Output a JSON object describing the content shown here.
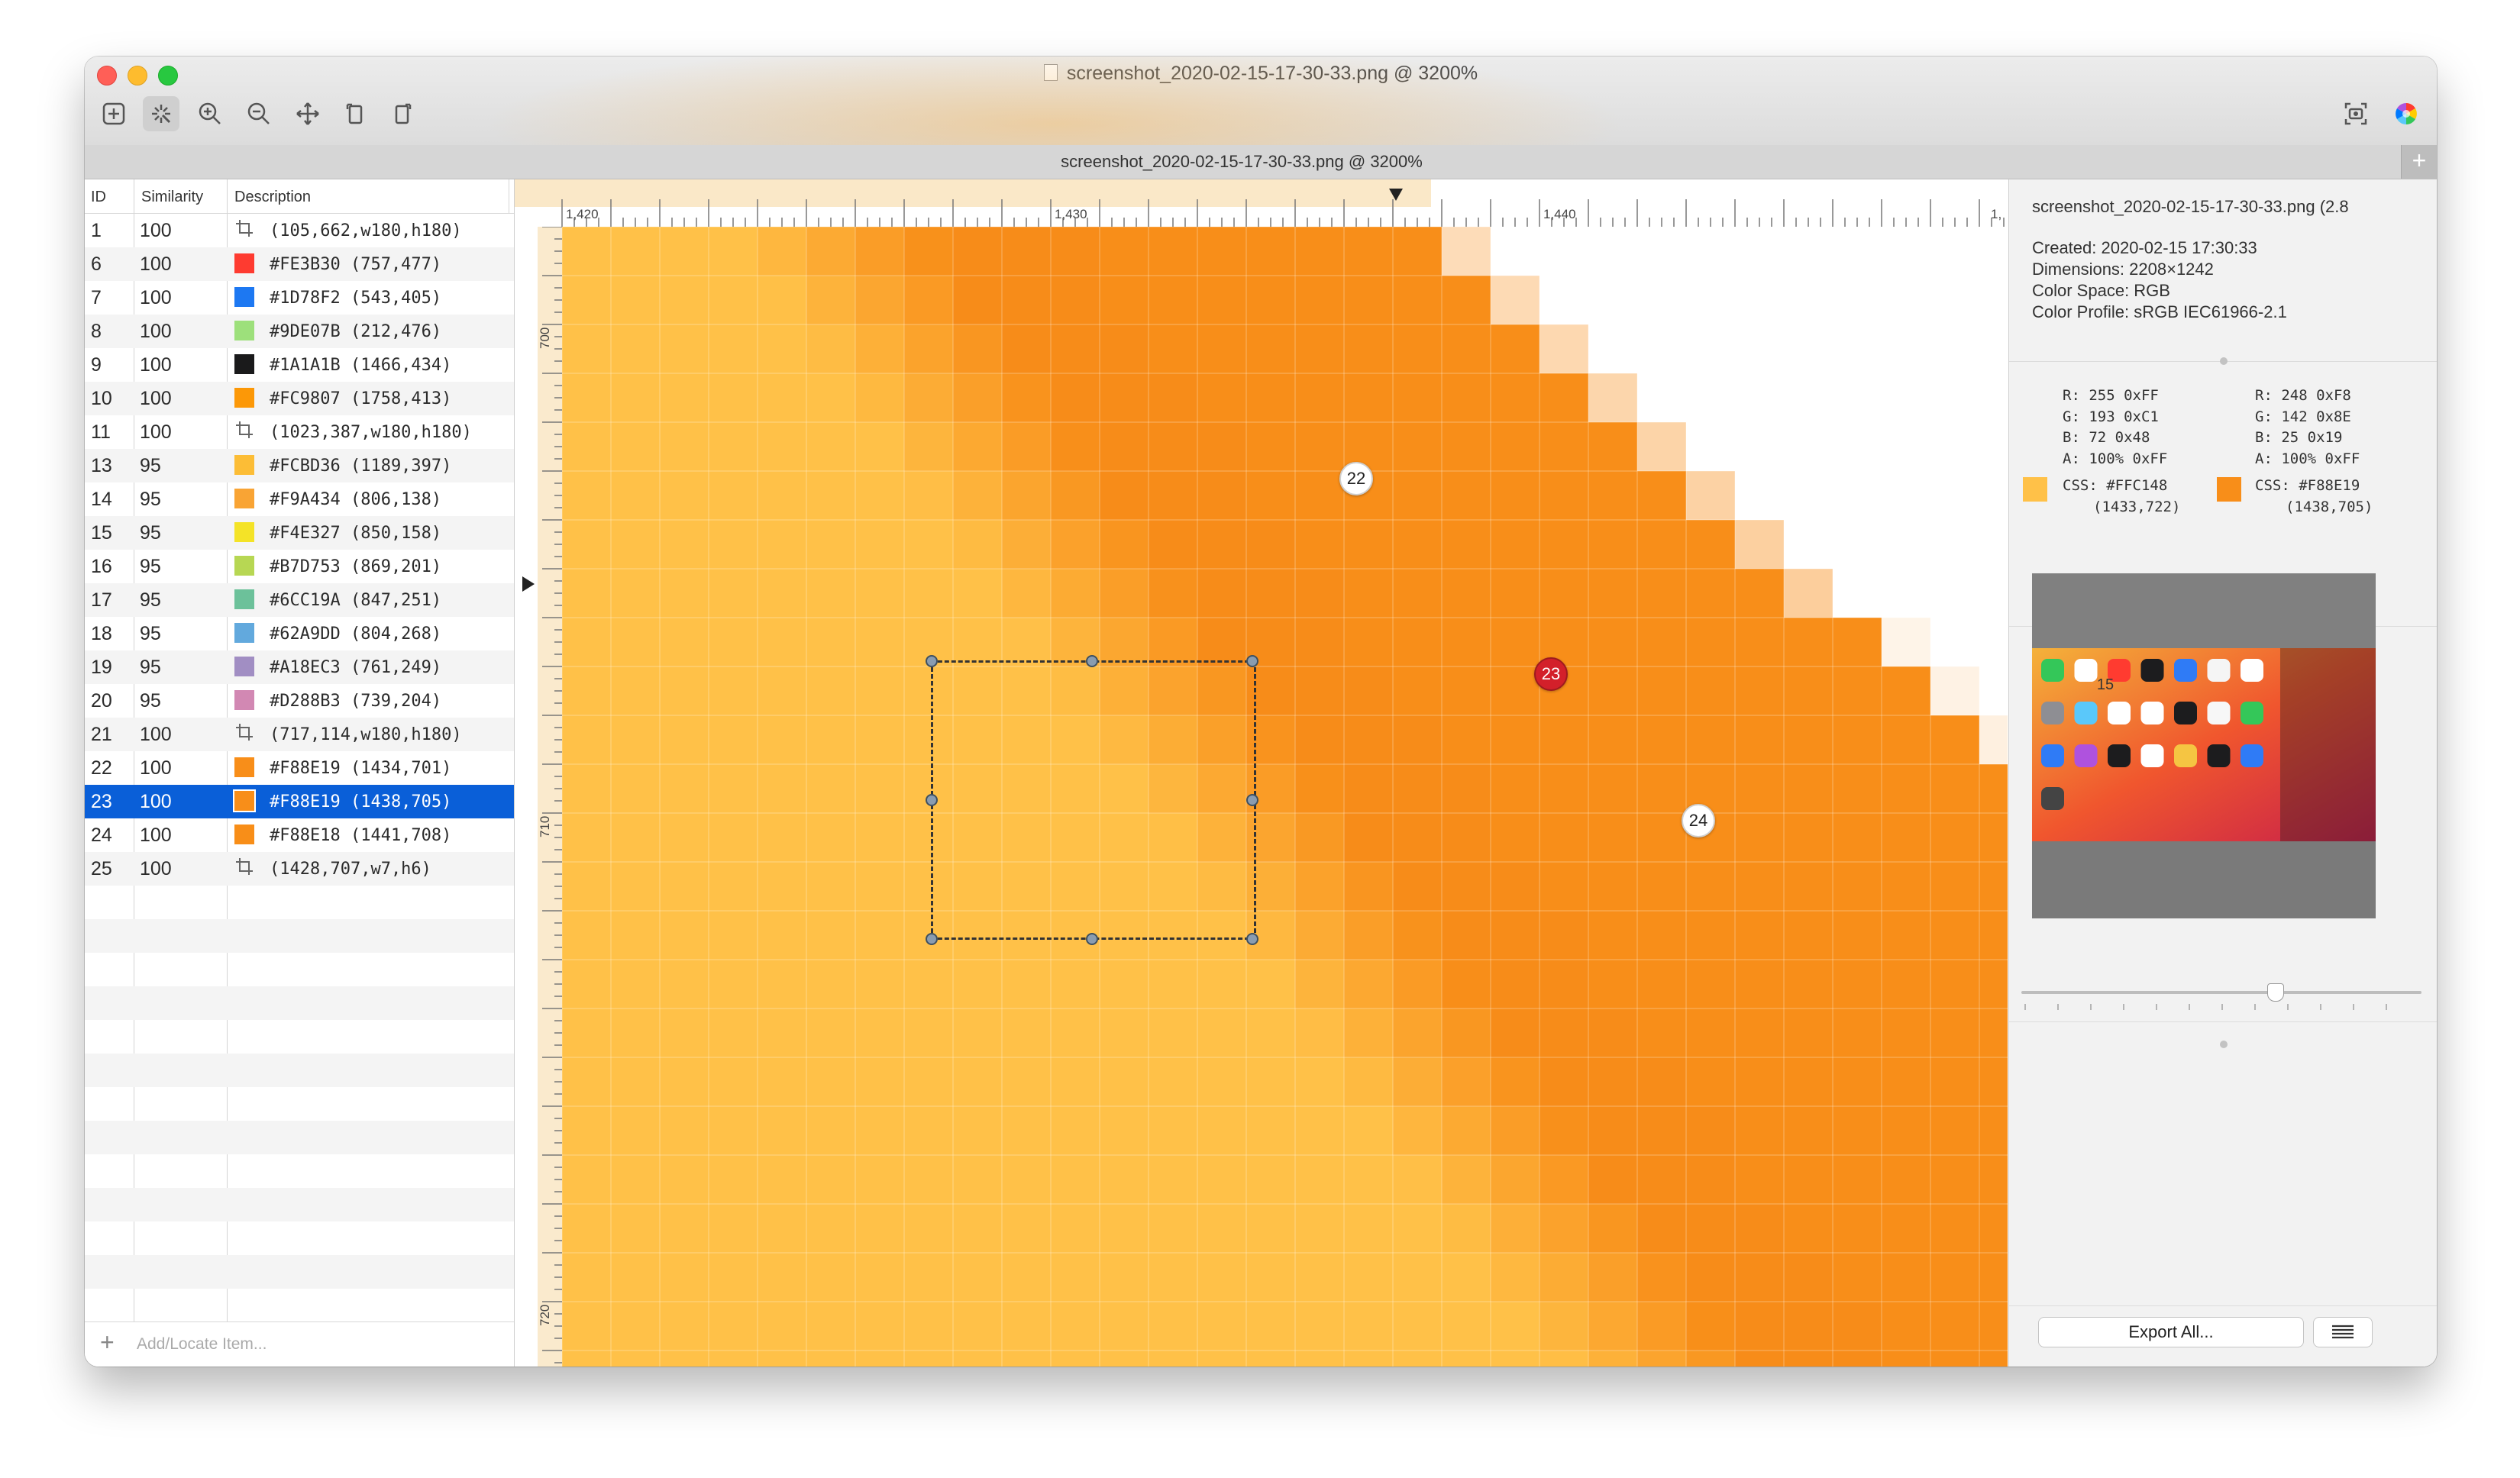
{
  "window": {
    "title": "screenshot_2020-02-15-17-30-33.png @ 3200%"
  },
  "toolbar": {
    "tools": [
      "add-icon",
      "magic-select-icon",
      "zoom-in-icon",
      "zoom-out-icon",
      "move-icon",
      "rotate-left-icon",
      "rotate-right-icon"
    ],
    "right_tools": [
      "screenshot-icon",
      "color-wheel-icon"
    ]
  },
  "tab": {
    "title": "screenshot_2020-02-15-17-30-33.png @ 3200%",
    "add": "+"
  },
  "list": {
    "headers": {
      "id": "ID",
      "similarity": "Similarity",
      "description": "Description"
    },
    "rows": [
      {
        "id": "1",
        "sim": "100",
        "kind": "crop",
        "color": "",
        "text": "(105,662,w180,h180)"
      },
      {
        "id": "6",
        "sim": "100",
        "kind": "color",
        "color": "#FE3B30",
        "text": "#FE3B30 (757,477)"
      },
      {
        "id": "7",
        "sim": "100",
        "kind": "color",
        "color": "#1D78F2",
        "text": "#1D78F2 (543,405)"
      },
      {
        "id": "8",
        "sim": "100",
        "kind": "color",
        "color": "#9DE07B",
        "text": "#9DE07B (212,476)"
      },
      {
        "id": "9",
        "sim": "100",
        "kind": "color",
        "color": "#1A1A1B",
        "text": "#1A1A1B (1466,434)"
      },
      {
        "id": "10",
        "sim": "100",
        "kind": "color",
        "color": "#FC9807",
        "text": "#FC9807 (1758,413)"
      },
      {
        "id": "11",
        "sim": "100",
        "kind": "crop",
        "color": "",
        "text": "(1023,387,w180,h180)"
      },
      {
        "id": "13",
        "sim": "95",
        "kind": "color",
        "color": "#FCBD36",
        "text": "#FCBD36 (1189,397)"
      },
      {
        "id": "14",
        "sim": "95",
        "kind": "color",
        "color": "#F9A434",
        "text": "#F9A434 (806,138)"
      },
      {
        "id": "15",
        "sim": "95",
        "kind": "color",
        "color": "#F4E327",
        "text": "#F4E327 (850,158)"
      },
      {
        "id": "16",
        "sim": "95",
        "kind": "color",
        "color": "#B7D753",
        "text": "#B7D753 (869,201)"
      },
      {
        "id": "17",
        "sim": "95",
        "kind": "color",
        "color": "#6CC19A",
        "text": "#6CC19A (847,251)"
      },
      {
        "id": "18",
        "sim": "95",
        "kind": "color",
        "color": "#62A9DD",
        "text": "#62A9DD (804,268)"
      },
      {
        "id": "19",
        "sim": "95",
        "kind": "color",
        "color": "#A18EC3",
        "text": "#A18EC3 (761,249)"
      },
      {
        "id": "20",
        "sim": "95",
        "kind": "color",
        "color": "#D288B3",
        "text": "#D288B3 (739,204)"
      },
      {
        "id": "21",
        "sim": "100",
        "kind": "crop",
        "color": "",
        "text": "(717,114,w180,h180)"
      },
      {
        "id": "22",
        "sim": "100",
        "kind": "color",
        "color": "#F88E19",
        "text": "#F88E19 (1434,701)"
      },
      {
        "id": "23",
        "sim": "100",
        "kind": "color",
        "color": "#F88E19",
        "text": "#F88E19 (1438,705)",
        "selected": true
      },
      {
        "id": "24",
        "sim": "100",
        "kind": "color",
        "color": "#F88E18",
        "text": "#F88E18 (1441,708)"
      },
      {
        "id": "25",
        "sim": "100",
        "kind": "crop",
        "color": "",
        "text": "(1428,707,w7,h6)"
      }
    ],
    "footer": {
      "add": "+",
      "placeholder": "Add/Locate Item..."
    }
  },
  "canvas": {
    "ruler_x_labels": [
      "1,420",
      "1,430",
      "1,440",
      "1,"
    ],
    "ruler_y_labels": [
      "700",
      "710",
      "720"
    ],
    "markers": [
      {
        "label": "22"
      },
      {
        "label": "23",
        "active": true
      },
      {
        "label": "24"
      }
    ],
    "colors": {
      "light": "#FFC148",
      "mid": "#F9A434",
      "dark": "#F88E19",
      "white": "#FFFFFF"
    }
  },
  "info": {
    "filename": "screenshot_2020-02-15-17-30-33.png (2.8",
    "created": "Created: 2020-02-15 17:30:33",
    "dimensions": "Dimensions: 2208×1242",
    "color_space": "Color Space: RGB",
    "color_profile": "Color Profile: sRGB IEC61966-2.1"
  },
  "colors": {
    "left": {
      "swatch": "#FFC148",
      "r": "R:  255  0xFF",
      "g": "G:  193  0xC1",
      "b": "B:   72  0x48",
      "a": "A:  100% 0xFF",
      "css": "CSS:  #FFC148",
      "pos": "(1433,722)"
    },
    "right": {
      "swatch": "#F88E19",
      "r": "R:  248  0xF8",
      "g": "G:  142  0x8E",
      "b": "B:   25  0x19",
      "a": "A:  100% 0xFF",
      "css": "CSS:  #F88E19",
      "pos": "(1438,705)"
    }
  },
  "thumbnail": {
    "date": "15"
  },
  "zoom_slider": {
    "value": 0.62
  },
  "buttons": {
    "export_all": "Export All..."
  }
}
